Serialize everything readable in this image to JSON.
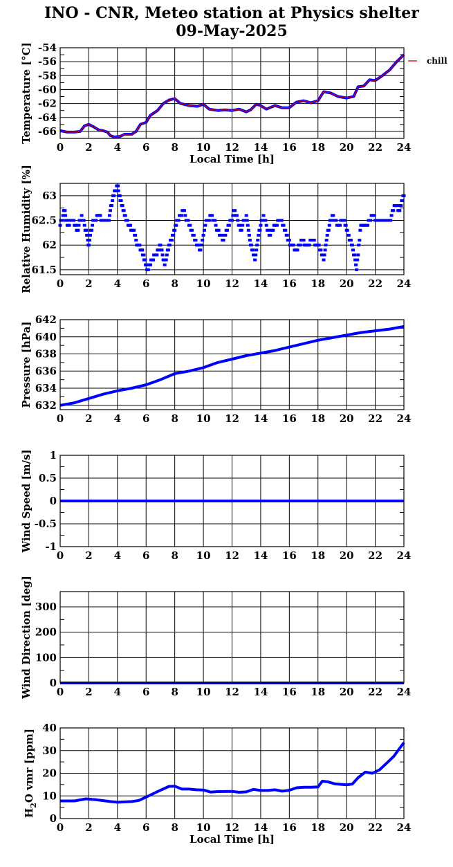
{
  "header": {
    "title": "INO - CNR, Meteo station at Physics shelter",
    "date": "09-May-2025"
  },
  "colors": {
    "data": "#0000ff",
    "chill": "#cc0000",
    "grid": "#000000"
  },
  "chart_data": [
    {
      "id": "temperature",
      "type": "line",
      "ylabel": "Temperature [°C]",
      "xlabel": "Local Time [h]",
      "xlim": [
        0,
        24
      ],
      "xticks": [
        0,
        2,
        4,
        6,
        8,
        10,
        12,
        14,
        16,
        18,
        20,
        22,
        24
      ],
      "ylim": [
        -67,
        -54
      ],
      "yticks": [
        -66,
        -64,
        -62,
        -60,
        -58,
        -56,
        -54
      ],
      "grid": true,
      "legend": {
        "placement": "right",
        "entries": [
          {
            "name": "chill",
            "color": "#cc0000"
          }
        ]
      },
      "series": [
        {
          "name": "Temperature",
          "color": "#0000ff",
          "points": [
            [
              0,
              -65.9
            ],
            [
              0.5,
              -66.1
            ],
            [
              1,
              -66.1
            ],
            [
              1.4,
              -66.0
            ],
            [
              1.7,
              -65.2
            ],
            [
              2.0,
              -65.0
            ],
            [
              2.3,
              -65.3
            ],
            [
              2.7,
              -65.8
            ],
            [
              3.0,
              -65.9
            ],
            [
              3.3,
              -66.1
            ],
            [
              3.5,
              -66.6
            ],
            [
              3.8,
              -66.8
            ],
            [
              4.2,
              -66.7
            ],
            [
              4.5,
              -66.4
            ],
            [
              5.0,
              -66.4
            ],
            [
              5.3,
              -66.0
            ],
            [
              5.6,
              -65.0
            ],
            [
              6.0,
              -64.7
            ],
            [
              6.3,
              -63.7
            ],
            [
              6.8,
              -63.0
            ],
            [
              7.2,
              -62.0
            ],
            [
              7.6,
              -61.5
            ],
            [
              8.0,
              -61.3
            ],
            [
              8.4,
              -62.0
            ],
            [
              9.0,
              -62.3
            ],
            [
              9.6,
              -62.4
            ],
            [
              10.0,
              -62.1
            ],
            [
              10.4,
              -62.8
            ],
            [
              11.0,
              -63.0
            ],
            [
              11.5,
              -62.9
            ],
            [
              12.0,
              -63.0
            ],
            [
              12.5,
              -62.8
            ],
            [
              13.0,
              -63.2
            ],
            [
              13.3,
              -62.9
            ],
            [
              13.7,
              -62.1
            ],
            [
              14.0,
              -62.3
            ],
            [
              14.4,
              -62.8
            ],
            [
              15.0,
              -62.3
            ],
            [
              15.5,
              -62.6
            ],
            [
              16.0,
              -62.6
            ],
            [
              16.5,
              -61.8
            ],
            [
              17.0,
              -61.6
            ],
            [
              17.5,
              -61.9
            ],
            [
              18.0,
              -61.6
            ],
            [
              18.4,
              -60.3
            ],
            [
              18.9,
              -60.5
            ],
            [
              19.4,
              -61.0
            ],
            [
              20.0,
              -61.2
            ],
            [
              20.5,
              -61.0
            ],
            [
              20.8,
              -59.6
            ],
            [
              21.2,
              -59.5
            ],
            [
              21.6,
              -58.6
            ],
            [
              22.0,
              -58.7
            ],
            [
              22.5,
              -58.0
            ],
            [
              23.0,
              -57.2
            ],
            [
              23.5,
              -56.0
            ],
            [
              24,
              -55.0
            ]
          ]
        }
      ]
    },
    {
      "id": "humidity",
      "type": "scatter",
      "ylabel": "Relative Humidity [%]",
      "xlim": [
        0,
        24
      ],
      "xticks": [
        0,
        2,
        4,
        6,
        8,
        10,
        12,
        14,
        16,
        18,
        20,
        22,
        24
      ],
      "ylim": [
        61.4,
        63.25
      ],
      "yticks": [
        61.5,
        62,
        62.5,
        63
      ],
      "yticklabels": [
        "61.5",
        "62",
        "62.5",
        "63"
      ],
      "grid": true,
      "series": [
        {
          "name": "Relative Humidity",
          "color": "#0000ff",
          "points": [
            [
              0,
              62.4
            ],
            [
              0.3,
              62.7
            ],
            [
              0.5,
              62.4
            ],
            [
              0.9,
              62.5
            ],
            [
              1.2,
              62.3
            ],
            [
              1.5,
              62.6
            ],
            [
              1.8,
              62.3
            ],
            [
              2.0,
              62.0
            ],
            [
              2.3,
              62.5
            ],
            [
              2.7,
              62.6
            ],
            [
              3.0,
              62.5
            ],
            [
              3.4,
              62.5
            ],
            [
              3.7,
              63.0
            ],
            [
              4.0,
              63.2
            ],
            [
              4.2,
              62.9
            ],
            [
              4.5,
              62.6
            ],
            [
              4.8,
              62.4
            ],
            [
              5.1,
              62.3
            ],
            [
              5.4,
              62.0
            ],
            [
              5.7,
              61.9
            ],
            [
              5.9,
              61.7
            ],
            [
              6.1,
              61.5
            ],
            [
              6.4,
              61.7
            ],
            [
              6.7,
              61.8
            ],
            [
              7.0,
              62.0
            ],
            [
              7.3,
              61.6
            ],
            [
              7.6,
              62.0
            ],
            [
              7.9,
              62.2
            ],
            [
              8.2,
              62.5
            ],
            [
              8.6,
              62.7
            ],
            [
              9.0,
              62.4
            ],
            [
              9.4,
              62.1
            ],
            [
              9.8,
              61.9
            ],
            [
              10.2,
              62.5
            ],
            [
              10.6,
              62.6
            ],
            [
              11.0,
              62.3
            ],
            [
              11.4,
              62.1
            ],
            [
              11.8,
              62.4
            ],
            [
              12.2,
              62.7
            ],
            [
              12.6,
              62.3
            ],
            [
              13.0,
              62.6
            ],
            [
              13.3,
              62.0
            ],
            [
              13.6,
              61.7
            ],
            [
              13.9,
              62.3
            ],
            [
              14.2,
              62.6
            ],
            [
              14.6,
              62.2
            ],
            [
              15.0,
              62.4
            ],
            [
              15.4,
              62.5
            ],
            [
              15.8,
              62.2
            ],
            [
              16.1,
              62.0
            ],
            [
              16.5,
              61.9
            ],
            [
              16.9,
              62.1
            ],
            [
              17.2,
              62.0
            ],
            [
              17.6,
              62.1
            ],
            [
              18.0,
              62.0
            ],
            [
              18.4,
              61.7
            ],
            [
              18.7,
              62.3
            ],
            [
              19.0,
              62.6
            ],
            [
              19.4,
              62.4
            ],
            [
              19.8,
              62.5
            ],
            [
              20.1,
              62.2
            ],
            [
              20.4,
              62.0
            ],
            [
              20.7,
              61.5
            ],
            [
              21.0,
              62.4
            ],
            [
              21.4,
              62.4
            ],
            [
              21.8,
              62.6
            ],
            [
              22.2,
              62.5
            ],
            [
              22.6,
              62.5
            ],
            [
              23.0,
              62.5
            ],
            [
              23.4,
              62.8
            ],
            [
              23.7,
              62.7
            ],
            [
              24,
              63.0
            ]
          ]
        }
      ]
    },
    {
      "id": "pressure",
      "type": "line",
      "ylabel": "Pressure [hPa]",
      "xlim": [
        0,
        24
      ],
      "xticks": [
        0,
        2,
        4,
        6,
        8,
        10,
        12,
        14,
        16,
        18,
        20,
        22,
        24
      ],
      "ylim": [
        631.5,
        642
      ],
      "yticks": [
        632,
        634,
        636,
        638,
        640,
        642
      ],
      "grid": true,
      "series": [
        {
          "name": "Pressure",
          "color": "#0000ff",
          "points": [
            [
              0,
              632.0
            ],
            [
              1,
              632.3
            ],
            [
              2,
              632.8
            ],
            [
              3,
              633.3
            ],
            [
              4,
              633.7
            ],
            [
              5,
              634.0
            ],
            [
              6,
              634.4
            ],
            [
              7,
              635.0
            ],
            [
              8,
              635.7
            ],
            [
              9,
              636.0
            ],
            [
              10,
              636.4
            ],
            [
              11,
              637.0
            ],
            [
              12,
              637.4
            ],
            [
              13,
              637.8
            ],
            [
              14,
              638.1
            ],
            [
              15,
              638.4
            ],
            [
              16,
              638.8
            ],
            [
              17,
              639.2
            ],
            [
              18,
              639.6
            ],
            [
              19,
              639.9
            ],
            [
              20,
              640.2
            ],
            [
              21,
              640.5
            ],
            [
              22,
              640.7
            ],
            [
              23,
              640.9
            ],
            [
              24,
              641.2
            ]
          ]
        }
      ]
    },
    {
      "id": "wind_speed",
      "type": "line",
      "ylabel": "Wind Speed [m/s]",
      "xlim": [
        0,
        24
      ],
      "xticks": [
        0,
        2,
        4,
        6,
        8,
        10,
        12,
        14,
        16,
        18,
        20,
        22,
        24
      ],
      "ylim": [
        -1,
        1
      ],
      "yticks": [
        -1,
        -0.5,
        0,
        0.5,
        1
      ],
      "yticklabels": [
        "-1",
        "-0.5",
        "0",
        "0.5",
        "1"
      ],
      "grid": true,
      "series": [
        {
          "name": "Wind Speed",
          "color": "#0000ff",
          "points": [
            [
              0,
              0
            ],
            [
              24,
              0
            ]
          ]
        }
      ]
    },
    {
      "id": "wind_direction",
      "type": "line",
      "ylabel": "Wind Direction [deg]",
      "xlim": [
        0,
        24
      ],
      "xticks": [
        0,
        2,
        4,
        6,
        8,
        10,
        12,
        14,
        16,
        18,
        20,
        22,
        24
      ],
      "ylim": [
        0,
        360
      ],
      "yticks": [
        0,
        100,
        200,
        300
      ],
      "grid": true,
      "series": [
        {
          "name": "Wind Direction",
          "color": "#0000ff",
          "points": [
            [
              0,
              0
            ],
            [
              24,
              0
            ]
          ]
        }
      ]
    },
    {
      "id": "h2o_vmr",
      "type": "line",
      "ylabel": "H2O vmr [ppm]",
      "xlabel": "Local Time [h]",
      "xlim": [
        0,
        24
      ],
      "xticks": [
        0,
        2,
        4,
        6,
        8,
        10,
        12,
        14,
        16,
        18,
        20,
        22,
        24
      ],
      "ylim": [
        0,
        40
      ],
      "yticks": [
        0,
        10,
        20,
        30,
        40
      ],
      "grid": true,
      "series": [
        {
          "name": "H2O vmr",
          "color": "#0000ff",
          "points": [
            [
              0,
              7.8
            ],
            [
              1,
              7.8
            ],
            [
              1.8,
              8.7
            ],
            [
              2.5,
              8.3
            ],
            [
              3.5,
              7.5
            ],
            [
              4,
              7.2
            ],
            [
              5,
              7.5
            ],
            [
              5.5,
              8.0
            ],
            [
              6,
              9.5
            ],
            [
              6.5,
              11.0
            ],
            [
              7,
              12.5
            ],
            [
              7.6,
              14.2
            ],
            [
              8,
              14.3
            ],
            [
              8.5,
              13.0
            ],
            [
              9,
              13.0
            ],
            [
              9.5,
              12.7
            ],
            [
              10,
              12.6
            ],
            [
              10.5,
              11.7
            ],
            [
              11,
              11.9
            ],
            [
              12,
              12.0
            ],
            [
              12.5,
              11.6
            ],
            [
              13,
              11.8
            ],
            [
              13.5,
              12.9
            ],
            [
              14,
              12.4
            ],
            [
              14.5,
              12.4
            ],
            [
              15,
              12.7
            ],
            [
              15.5,
              12.1
            ],
            [
              16,
              12.5
            ],
            [
              16.5,
              13.6
            ],
            [
              17,
              13.8
            ],
            [
              17.5,
              13.8
            ],
            [
              18,
              14.0
            ],
            [
              18.3,
              16.5
            ],
            [
              18.7,
              16.2
            ],
            [
              19.2,
              15.3
            ],
            [
              20,
              14.9
            ],
            [
              20.4,
              15.2
            ],
            [
              20.8,
              18.0
            ],
            [
              21.3,
              20.5
            ],
            [
              21.8,
              20.0
            ],
            [
              22.3,
              21.5
            ],
            [
              22.8,
              24.5
            ],
            [
              23.3,
              27.5
            ],
            [
              23.7,
              31.0
            ],
            [
              24,
              33.5
            ]
          ]
        }
      ]
    }
  ]
}
